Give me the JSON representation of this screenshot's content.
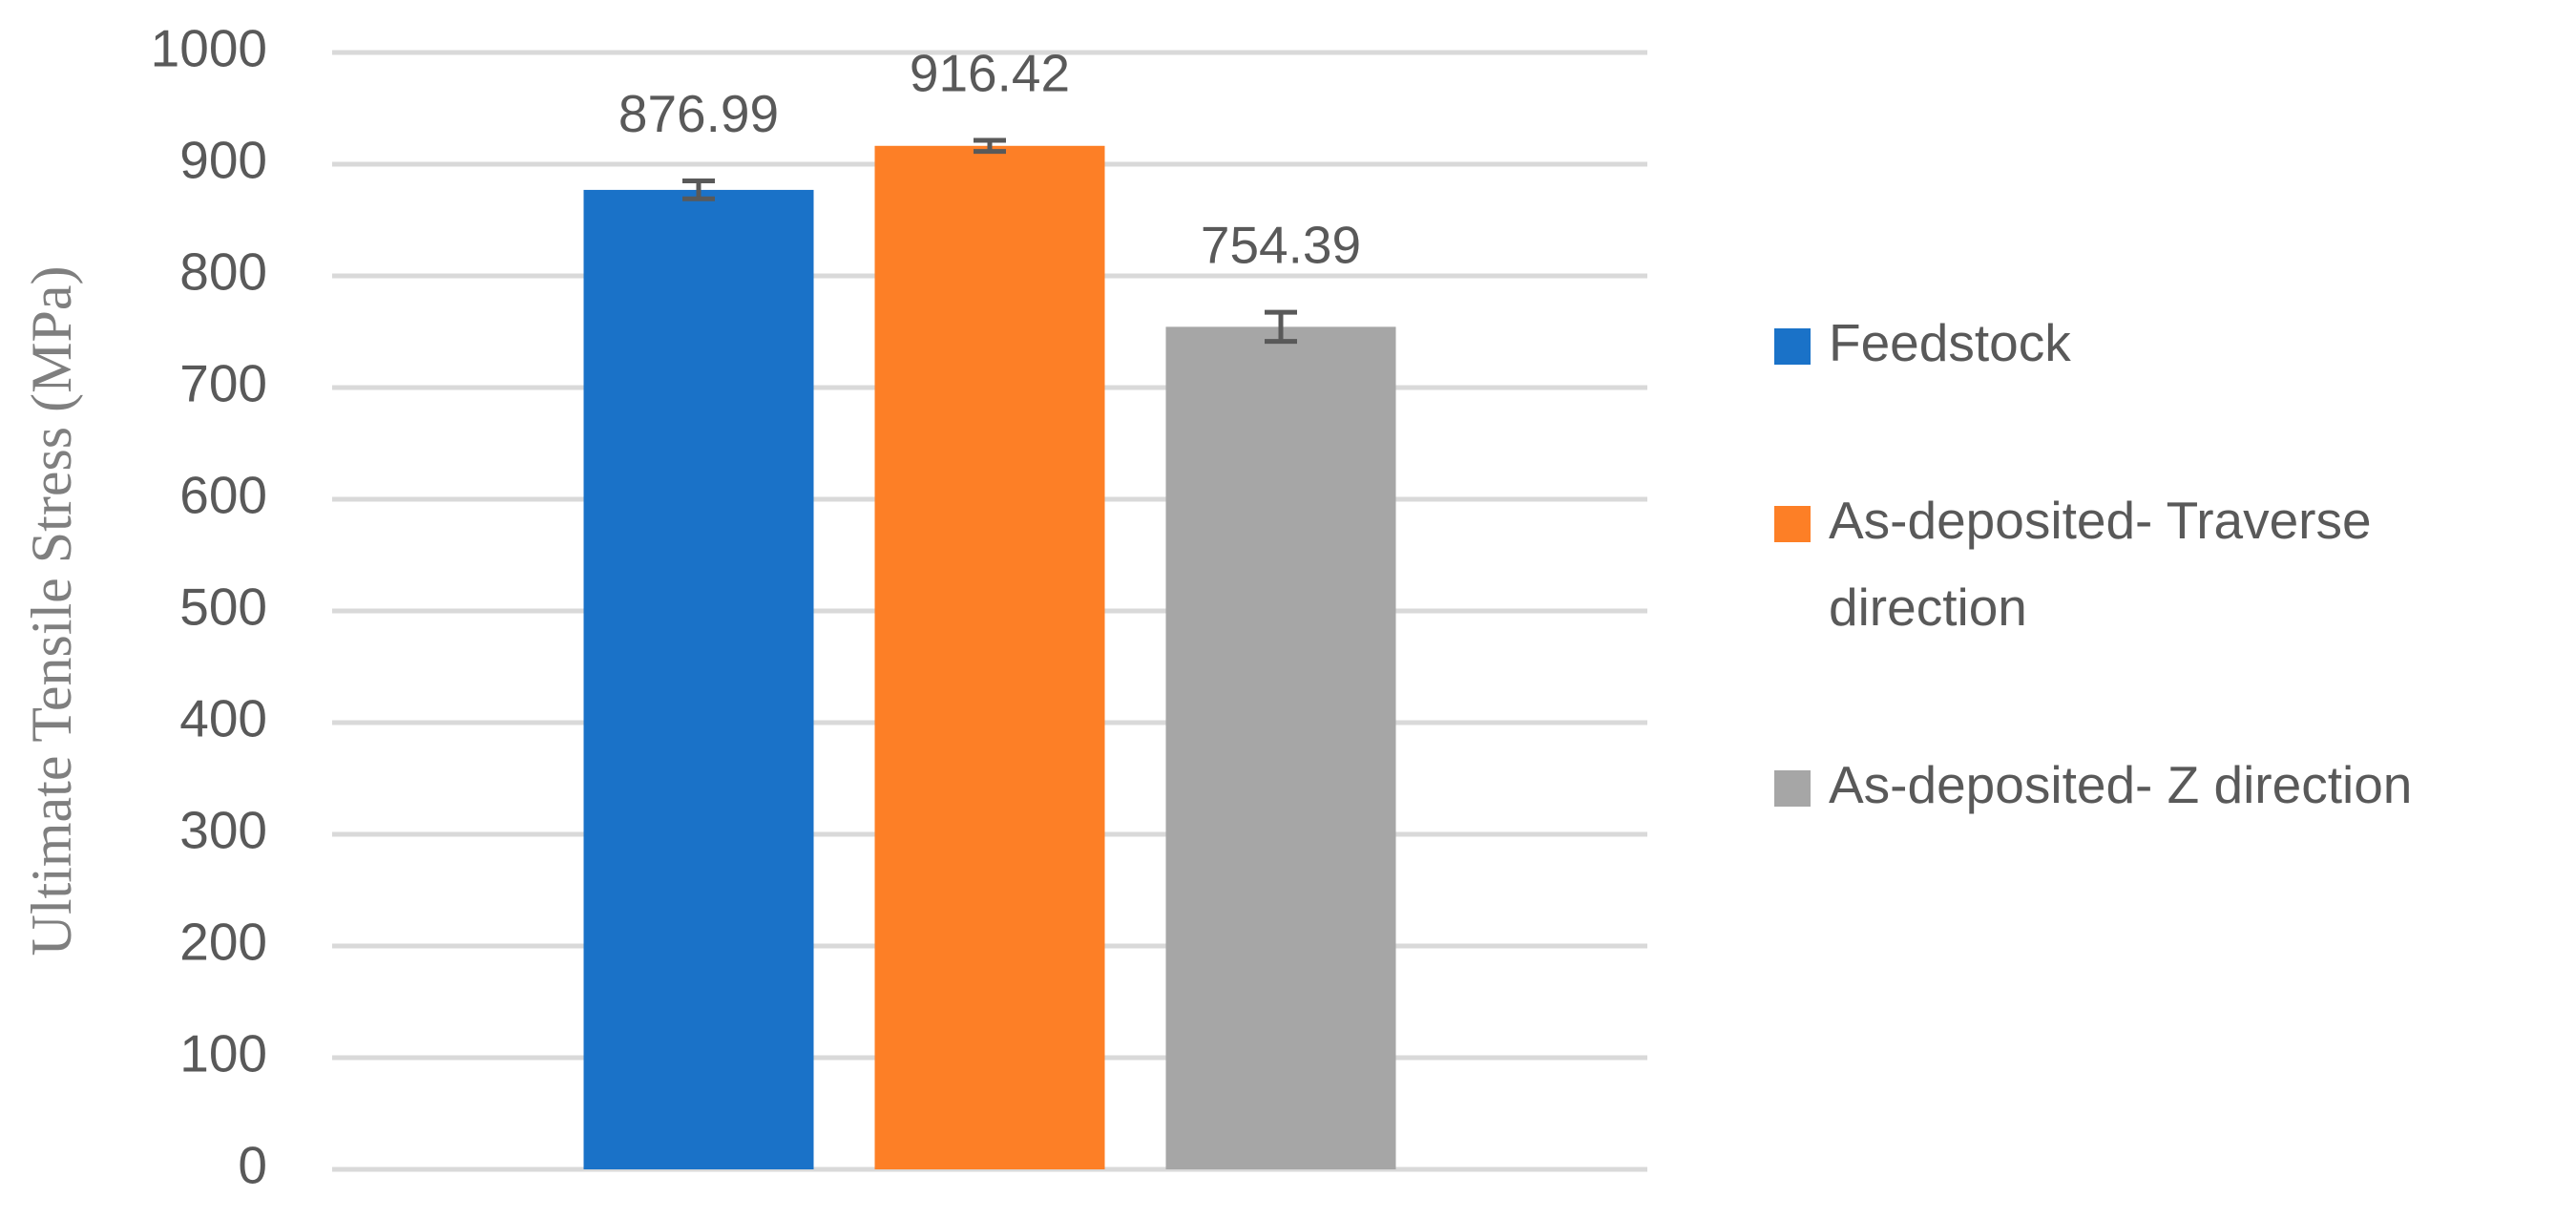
{
  "chart_data": {
    "type": "bar",
    "y_label": "Ultimate Tensile Stress (MPa)",
    "categories": [
      null
    ],
    "series": [
      {
        "name": "Feedstock",
        "color": "#1a72c8",
        "values": [
          876.99
        ],
        "errors": [
          8
        ]
      },
      {
        "name": "As-deposited- Traverse direction",
        "color": "#fd7f26",
        "values": [
          916.42
        ],
        "errors": [
          5
        ]
      },
      {
        "name": "As-deposited- Z direction",
        "color": "#a6a6a6",
        "values": [
          754.39
        ],
        "errors": [
          13
        ]
      }
    ],
    "ylim": [
      0,
      1000
    ],
    "yticks": [
      0,
      100,
      200,
      300,
      400,
      500,
      600,
      700,
      800,
      900,
      1000
    ],
    "grid": true,
    "legend": "right"
  }
}
